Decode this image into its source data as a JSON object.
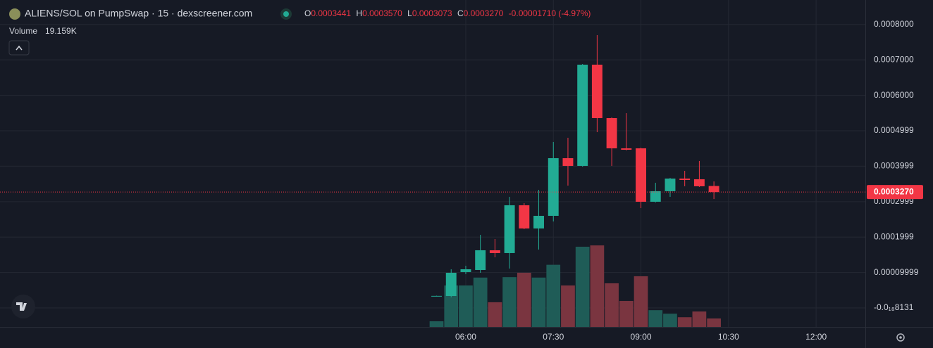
{
  "chart_data": {
    "type": "candlestick",
    "title": "ALIENS/SOL on PumpSwap · 15 · dexscreener.com",
    "readout": {
      "o": "O",
      "open": "0.0003441",
      "h": "H",
      "high": "0.0003570",
      "l": "L",
      "low": "0.0003073",
      "c": "C",
      "close": "0.0003270",
      "change": "-0.00001710 (-4.97%)"
    },
    "price_tag": "0.0003270",
    "x": [
      330,
      345,
      360,
      375,
      390,
      405,
      420,
      435,
      450,
      465,
      480,
      495,
      510,
      525,
      540,
      555,
      570,
      585,
      600,
      615
    ],
    "open": [
      3.3e-05,
      3.37e-05,
      0.0001012,
      0.0001071,
      0.0001627,
      0.0001548,
      0.0002897,
      0.0002242,
      0.0002599,
      0.0004226,
      0.0004008,
      0.0006865,
      0.0005357,
      0.0004504,
      0.0004504,
      0.0002996,
      0.0003294,
      0.0003651,
      0.0003631,
      0.0003441
    ],
    "high": [
      3.45e-05,
      0.000109,
      0.000119,
      0.0002063,
      0.0001944,
      0.0003135,
      0.0002956,
      0.0003333,
      0.0004683,
      0.0004802,
      0.0006885,
      0.0007698,
      0.0005377,
      0.0005496,
      0.0004524,
      0.0003532,
      0.0003671,
      0.0003869,
      0.0004147,
      0.000357
    ],
    "low": [
      3.25e-05,
      2.98e-05,
      9.52e-05,
      9.92e-05,
      0.0001429,
      0.0001111,
      0.0002222,
      0.0001647,
      0.000244,
      0.0003452,
      0.0003988,
      0.000496,
      0.0004008,
      0.0004444,
      0.0002817,
      0.0002976,
      0.0003135,
      0.0003433,
      0.0003413,
      0.0003073
    ],
    "close": [
      3.4e-05,
      9.92e-05,
      0.0001091,
      0.0001627,
      0.0001548,
      0.0002897,
      0.0002242,
      0.0002599,
      0.0004226,
      0.0004008,
      0.0006865,
      0.0005357,
      0.0004504,
      0.0004464,
      0.0002996,
      0.0003294,
      0.0003651,
      0.0003611,
      0.0003433,
      0.000327
    ],
    "volume": {
      "name": "Volume",
      "values": [
        12800,
        94000,
        94000,
        112000,
        56000,
        113000,
        123000,
        112000,
        141000,
        94000,
        182000,
        185000,
        99000,
        59000,
        115000,
        38000,
        30000,
        22000,
        35000,
        19159
      ],
      "last_label": "19.159K"
    },
    "volume_ylim": [
      0,
      742000
    ],
    "up_color": "#22ab94",
    "down_color": "#f23645",
    "up_volume_color": "#1f5c57",
    "down_volume_color": "#7a3540",
    "xlim": [
      -118.6,
      770.6
    ],
    "xticks": [
      {
        "value": 360,
        "label": "06:00"
      },
      {
        "value": 450,
        "label": "07:30"
      },
      {
        "value": 540,
        "label": "09:00"
      },
      {
        "value": 630,
        "label": "10:30"
      },
      {
        "value": 720,
        "label": "12:00"
      }
    ],
    "ylim": [
      -5.36e-05,
      0.000869
    ],
    "yticks": [
      {
        "value": 0.0008,
        "label": "0.0008000"
      },
      {
        "value": 0.0007,
        "label": "0.0007000"
      },
      {
        "value": 0.0006,
        "label": "0.0006000"
      },
      0.0004999,
      0.0003999,
      0.0002999,
      0.0001999,
      9.999e-05,
      {
        "value": -8.131e-19,
        "label": "-0.0₁₈8131"
      }
    ],
    "grid": true
  }
}
